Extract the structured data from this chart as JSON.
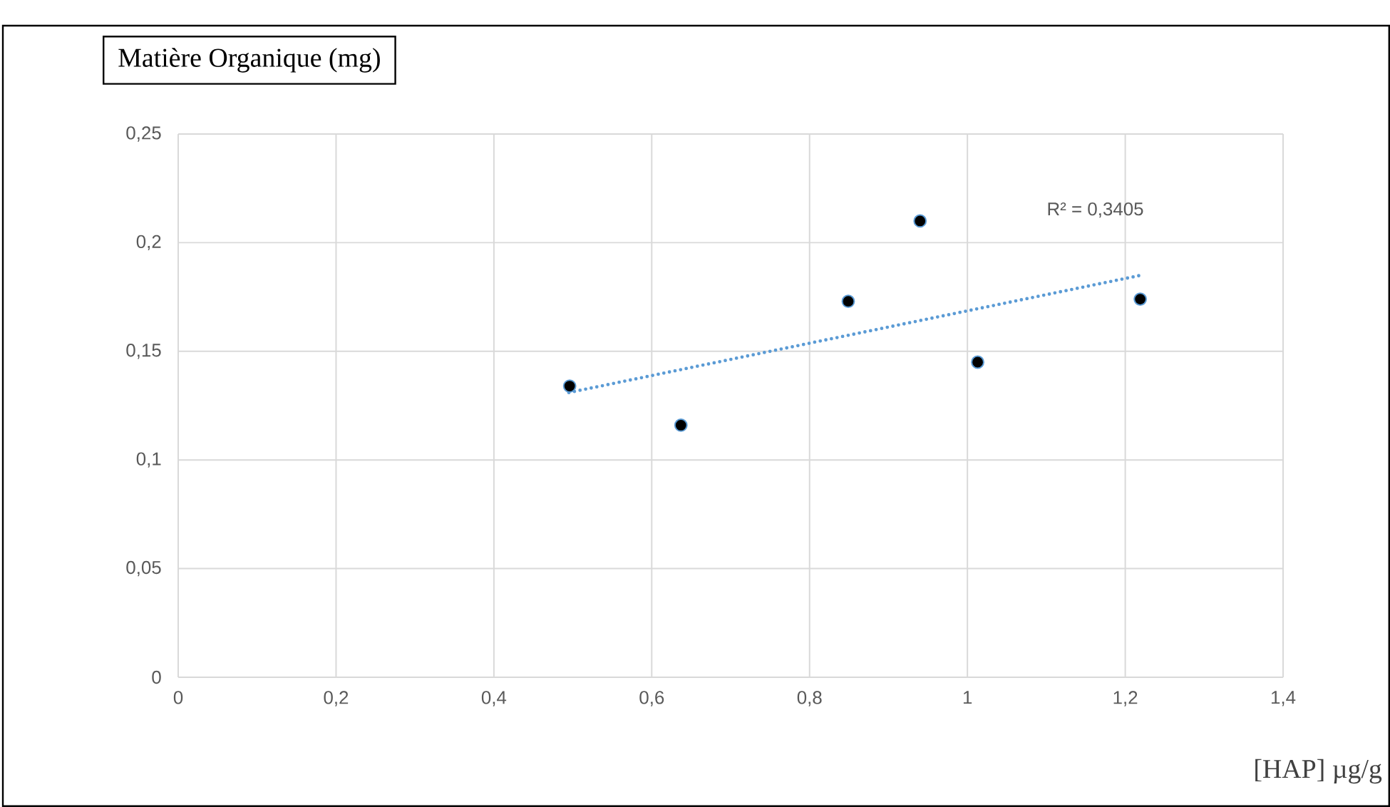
{
  "chart_data": {
    "type": "scatter",
    "ylabel": "Matière Organique (mg)",
    "xlabel": "[HAP] µg/g",
    "xlim": [
      0,
      1.4
    ],
    "ylim": [
      0,
      0.25
    ],
    "xticks": [
      0,
      {
        "value": 0.2,
        "label": "0,2"
      },
      {
        "value": 0.4,
        "label": "0,4"
      },
      {
        "value": 0.6,
        "label": "0,6"
      },
      {
        "value": 0.8,
        "label": "0,8"
      },
      1,
      {
        "value": 1.2,
        "label": "1,2"
      },
      {
        "value": 1.4,
        "label": "1,4"
      }
    ],
    "yticks": [
      0,
      {
        "value": 0.05,
        "label": "0,05"
      },
      {
        "value": 0.1,
        "label": "0,1"
      },
      {
        "value": 0.15,
        "label": "0,15"
      },
      {
        "value": 0.2,
        "label": "0,2"
      },
      {
        "value": 0.25,
        "label": "0,25"
      }
    ],
    "grid": true,
    "series": [
      {
        "color": "#000000",
        "marker": "circle",
        "x": [
          0.496,
          0.637,
          0.849,
          0.94,
          1.013,
          1.219
        ],
        "values": [
          0.134,
          0.116,
          0.173,
          0.21,
          0.145,
          0.174
        ]
      },
      {
        "type": "line",
        "color": "#5b9bd5",
        "line_style": "dotted",
        "marker": "none",
        "x": [
          0.495,
          1.22
        ],
        "values": [
          0.131,
          0.185
        ]
      }
    ],
    "annotations": [
      "R² = 0,3405"
    ]
  }
}
